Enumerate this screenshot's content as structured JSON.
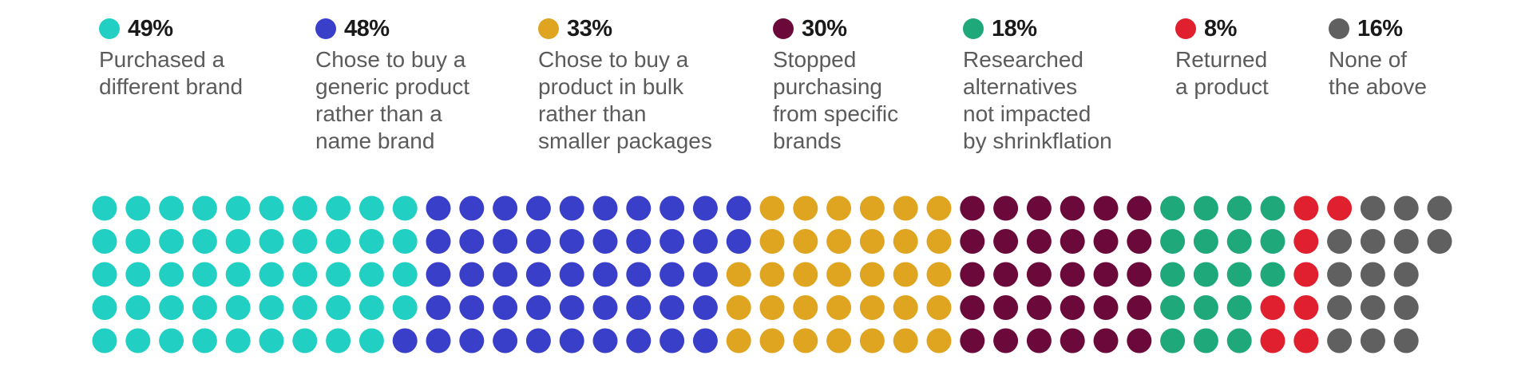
{
  "chart_data": {
    "type": "dot-matrix",
    "rows": 5,
    "series": [
      {
        "name": "Purchased a\ndifferent brand",
        "value": 49,
        "display": "49%",
        "color": "#22d0c3",
        "dots": 49
      },
      {
        "name": "Chose to buy a\ngeneric product\nrather than a\nname brand",
        "value": 48,
        "display": "48%",
        "color": "#3a3fc9",
        "dots": 48
      },
      {
        "name": "Chose to buy a\nproduct in bulk\nrather than\nsmaller packages",
        "value": 33,
        "display": "33%",
        "color": "#dfa520",
        "dots": 33
      },
      {
        "name": "Stopped\npurchasing\nfrom specific\nbrands",
        "value": 30,
        "display": "30%",
        "color": "#6b0a3a",
        "dots": 30
      },
      {
        "name": "Researched\nalternatives\nnot impacted\nby shrinkflation",
        "value": 18,
        "display": "18%",
        "color": "#1fa87a",
        "dots": 18
      },
      {
        "name": "Returned\na product",
        "value": 8,
        "display": "8%",
        "color": "#e0202e",
        "dots": 8
      },
      {
        "name": "None of\nthe above",
        "value": 16,
        "display": "16%",
        "color": "#606060",
        "dots": 16
      }
    ]
  }
}
